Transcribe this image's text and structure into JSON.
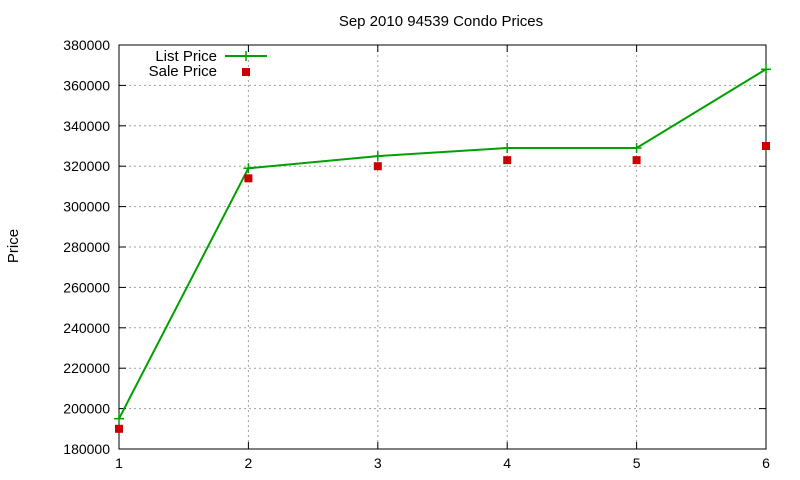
{
  "chart_data": {
    "type": "line",
    "title": "Sep 2010 94539 Condo Prices",
    "xlabel": "",
    "ylabel": "Price",
    "x": [
      1,
      2,
      3,
      4,
      5,
      6
    ],
    "xlim": [
      1,
      6
    ],
    "ylim": [
      180000,
      380000
    ],
    "xticks": [
      "1",
      "2",
      "3",
      "4",
      "5",
      "6"
    ],
    "yticks": [
      "180000",
      "200000",
      "220000",
      "240000",
      "260000",
      "280000",
      "300000",
      "320000",
      "340000",
      "360000",
      "380000"
    ],
    "grid": true,
    "legend_position": "top-left",
    "series": [
      {
        "name": "List Price",
        "style": "line-plus",
        "color": "#00a000",
        "values": [
          195000,
          319000,
          325000,
          329000,
          329000,
          368000
        ]
      },
      {
        "name": "Sale Price",
        "style": "square",
        "color": "#cc0000",
        "values": [
          190000,
          314000,
          320000,
          323000,
          323000,
          330000
        ]
      }
    ]
  }
}
